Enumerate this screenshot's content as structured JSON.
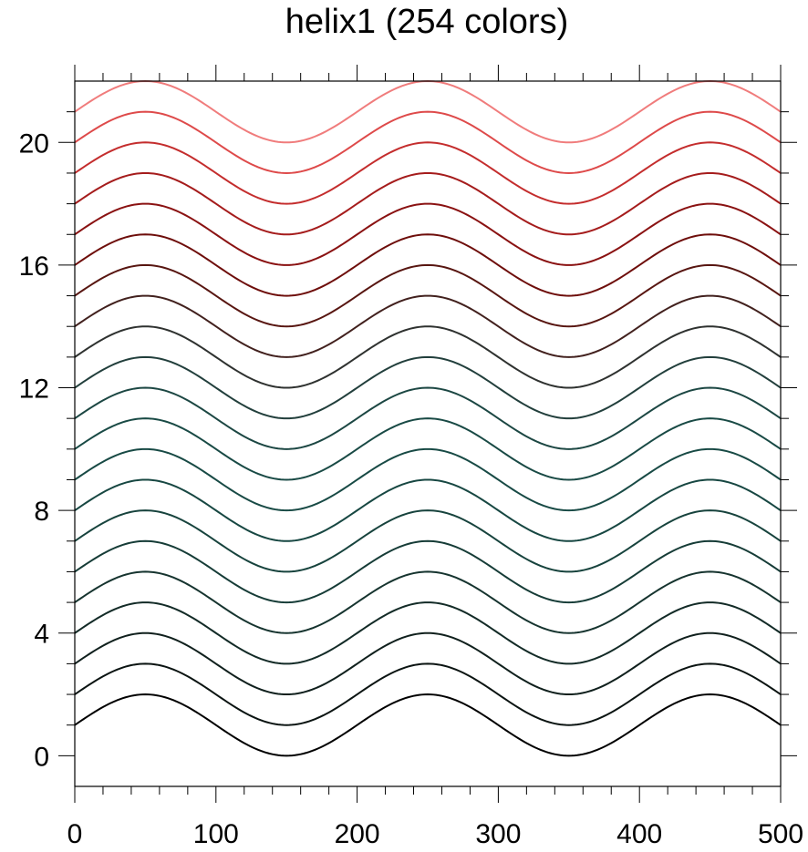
{
  "chart_data": {
    "type": "line",
    "title": "helix1 (254 colors)",
    "xlabel": "",
    "ylabel": "",
    "xlim": [
      0,
      500
    ],
    "ylim": [
      -1,
      22
    ],
    "x_ticks": [
      0,
      100,
      200,
      300,
      400,
      500
    ],
    "x_tick_labels": [
      "0",
      "100",
      "200",
      "300",
      "400",
      "500"
    ],
    "y_ticks": [
      0,
      4,
      8,
      12,
      16,
      20
    ],
    "y_tick_labels": [
      "0",
      "4",
      "8",
      "12",
      "16",
      "20"
    ],
    "grid": false,
    "legend": "none",
    "wave": {
      "amplitude": 1,
      "period": 200,
      "x_start": 0,
      "x_end": 500
    },
    "series": [
      {
        "offset": 1,
        "color": "#000000"
      },
      {
        "offset": 2,
        "color": "#0b1412"
      },
      {
        "offset": 3,
        "color": "#10201d"
      },
      {
        "offset": 4,
        "color": "#132b27"
      },
      {
        "offset": 5,
        "color": "#16342f"
      },
      {
        "offset": 6,
        "color": "#163c37"
      },
      {
        "offset": 7,
        "color": "#17433d"
      },
      {
        "offset": 8,
        "color": "#174742"
      },
      {
        "offset": 9,
        "color": "#184a45"
      },
      {
        "offset": 10,
        "color": "#194a45"
      },
      {
        "offset": 11,
        "color": "#1c4743"
      },
      {
        "offset": 12,
        "color": "#223f3c"
      },
      {
        "offset": 13,
        "color": "#2f3230"
      },
      {
        "offset": 14,
        "color": "#42211e"
      },
      {
        "offset": 15,
        "color": "#581611"
      },
      {
        "offset": 16,
        "color": "#6e0e0b"
      },
      {
        "offset": 17,
        "color": "#8a1212"
      },
      {
        "offset": 18,
        "color": "#a51c1c"
      },
      {
        "offset": 19,
        "color": "#c42d2d"
      },
      {
        "offset": 20,
        "color": "#de4a4a"
      },
      {
        "offset": 21,
        "color": "#f07c7c"
      }
    ]
  }
}
